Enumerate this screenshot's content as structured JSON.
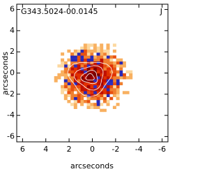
{
  "chart_data": {
    "type": "image",
    "title": "G343.5024-00.0145",
    "panel_label": "J",
    "x_label": "arcseconds",
    "y_label": "arcseconds",
    "xlim": [
      6.5,
      -6.5
    ],
    "ylim": [
      -6.5,
      6.5
    ],
    "xticks": [
      6,
      4,
      2,
      0,
      -2,
      -4,
      -6
    ],
    "yticks": [
      -6,
      -4,
      -2,
      0,
      2,
      4,
      6
    ]
  }
}
